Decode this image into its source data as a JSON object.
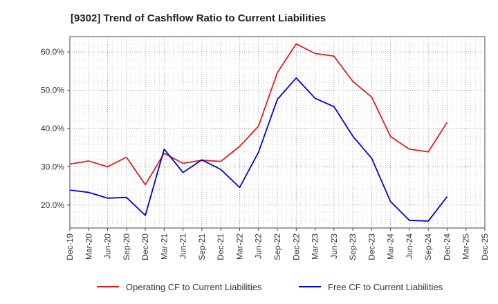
{
  "chart_data": {
    "type": "line",
    "title": "[9302]  Trend of Cashflow Ratio to Current Liabilities",
    "xlabel": "",
    "ylabel": "",
    "x_ticks": [
      "Dec-19",
      "Mar-20",
      "Jun-20",
      "Sep-20",
      "Dec-20",
      "Mar-21",
      "Jun-21",
      "Sep-21",
      "Dec-21",
      "Mar-22",
      "Jun-22",
      "Sep-22",
      "Dec-22",
      "Mar-23",
      "Jun-23",
      "Sep-23",
      "Dec-23",
      "Mar-24",
      "Jun-24",
      "Sep-24",
      "Dec-24",
      "Mar-25",
      "Dec-25"
    ],
    "categories": [
      "Dec-19",
      "Mar-20",
      "Jun-20",
      "Sep-20",
      "Dec-20",
      "Mar-21",
      "Jun-21",
      "Sep-21",
      "Dec-21",
      "Mar-22",
      "Jun-22",
      "Sep-22",
      "Dec-22",
      "Mar-23",
      "Jun-23",
      "Sep-23",
      "Dec-23",
      "Mar-24",
      "Jun-24",
      "Sep-24",
      "Dec-24"
    ],
    "y_ticks": [
      "20.0%",
      "30.0%",
      "40.0%",
      "50.0%",
      "60.0%"
    ],
    "y_tick_values": [
      20,
      30,
      40,
      50,
      60
    ],
    "ylim": [
      14,
      64
    ],
    "grid": true,
    "legend_position": "bottom",
    "series": [
      {
        "name": "Operating CF to Current Liabilities",
        "color": "#e31a1c",
        "values": [
          30.7,
          31.5,
          30.0,
          32.5,
          25.3,
          33.5,
          30.9,
          31.7,
          31.4,
          35.3,
          40.6,
          54.6,
          62.1,
          59.6,
          58.9,
          52.3,
          48.2,
          37.9,
          34.6,
          33.9,
          41.6
        ]
      },
      {
        "name": "Free CF to Current Liabilities",
        "color": "#0000dd",
        "values": [
          23.9,
          23.3,
          21.8,
          22.0,
          17.3,
          34.6,
          28.5,
          31.8,
          29.3,
          24.6,
          33.8,
          47.6,
          53.2,
          47.9,
          45.7,
          38.0,
          32.2,
          20.9,
          16.0,
          15.8,
          22.2
        ]
      }
    ]
  }
}
